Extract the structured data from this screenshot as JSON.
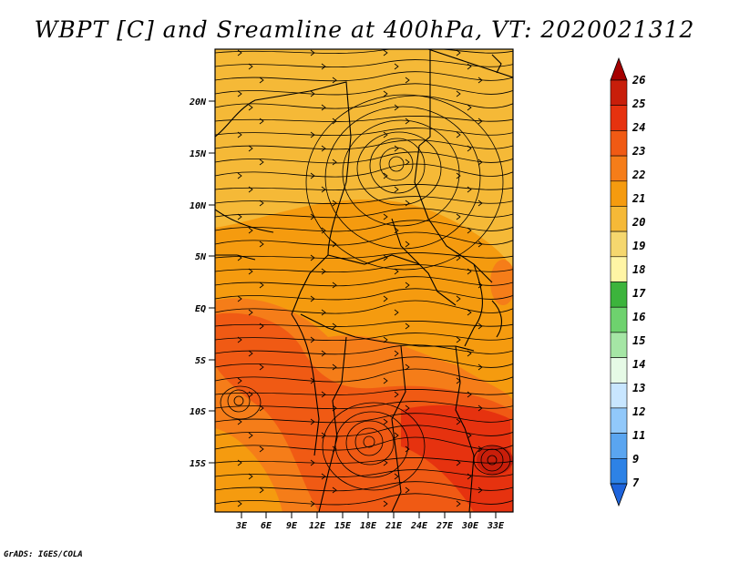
{
  "title": "WBPT [C] and Sreamline at 400hPa, VT: 2020021312",
  "credit": "GrADS: IGES/COLA",
  "lat_labels": [
    "20N",
    "15N",
    "10N",
    "5N",
    "EQ",
    "5S",
    "10S",
    "15S"
  ],
  "lon_labels": [
    "3E",
    "6E",
    "9E",
    "12E",
    "15E",
    "18E",
    "21E",
    "24E",
    "27E",
    "30E",
    "33E"
  ],
  "colorbar": {
    "labels": [
      "26",
      "25",
      "24",
      "23",
      "22",
      "21",
      "20",
      "19",
      "18",
      "17",
      "16",
      "15",
      "14",
      "13",
      "12",
      "11",
      "9",
      "7"
    ],
    "colors": [
      "#a50000",
      "#c81e0a",
      "#e6320f",
      "#f05a14",
      "#f57d19",
      "#f59b0f",
      "#f5b937",
      "#f5d76e",
      "#fff5a5",
      "#3cb43c",
      "#6ed26e",
      "#a5e6a5",
      "#e6fae6",
      "#c8e6ff",
      "#91c8fa",
      "#5aa5f0",
      "#2d82e6",
      "#1e64dc"
    ]
  },
  "map": {
    "fields": [
      {
        "name": "north",
        "color": "#f5b937"
      },
      {
        "name": "central",
        "color": "#f59b0f"
      },
      {
        "name": "west-coast",
        "color": "#f57d19"
      },
      {
        "name": "south-central",
        "color": "#f05a14"
      },
      {
        "name": "southeast",
        "color": "#e6320f"
      },
      {
        "name": "core",
        "color": "#c81e0a"
      }
    ],
    "vortices": [
      "vortex-north",
      "vortex-south",
      "vortex-west"
    ]
  }
}
